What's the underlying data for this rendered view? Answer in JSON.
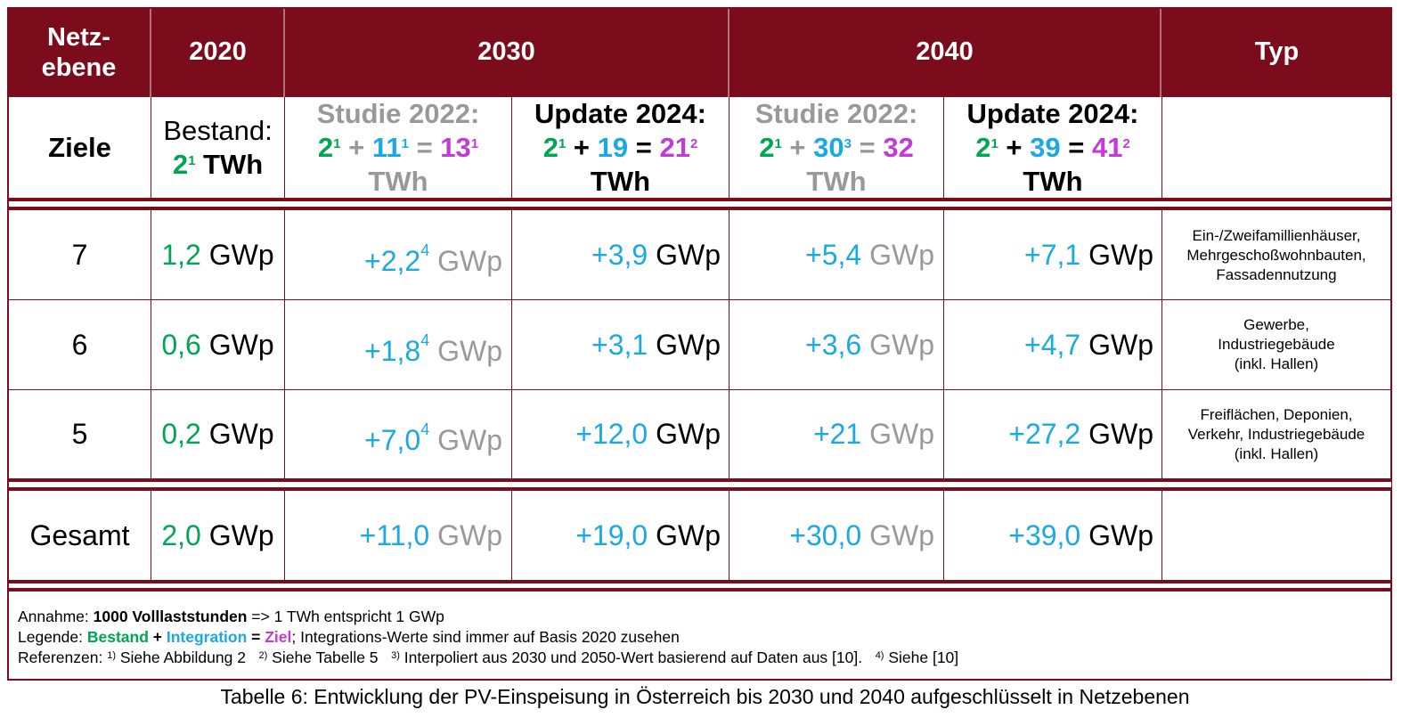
{
  "header": {
    "col_netz": "Netz-\nebene",
    "col_2020": "2020",
    "col_2030": "2030",
    "col_2040": "2040",
    "col_typ": "Typ"
  },
  "goals": {
    "label": "Ziele",
    "y2020": {
      "title": "Bestand:",
      "v1": "2",
      "s1": "1",
      "unit": "TWh"
    },
    "s2030": {
      "title": "Studie 2022:",
      "a": "2",
      "as": "1",
      "plus": "+",
      "b": "11",
      "bs": "1",
      "eq": "=",
      "c": "13",
      "cs": "1",
      "unit": "TWh"
    },
    "u2030": {
      "title": "Update 2024:",
      "a": "2",
      "as": "1",
      "plus": "+",
      "b": "19",
      "eq": "=",
      "c": "21",
      "cs": "2",
      "unit": "TWh"
    },
    "s2040": {
      "title": "Studie 2022:",
      "a": "2",
      "as": "1",
      "plus": "+",
      "b": "30",
      "bs": "3",
      "eq": "=",
      "c": "32",
      "unit": "TWh"
    },
    "u2040": {
      "title": "Update 2024:",
      "a": "2",
      "as": "1",
      "plus": "+",
      "b": "39",
      "eq": "=",
      "c": "41",
      "cs": "2",
      "unit": "TWh"
    }
  },
  "rows": [
    {
      "level": "7",
      "bestand": "1,2",
      "s2030": "+2,2",
      "s2030_sup": "4",
      "u2030": "+3,9",
      "s2040": "+5,4",
      "u2040": "+7,1",
      "typ": [
        "Ein-/Zweifamillienhäuser,",
        "Mehrgeschoßwohnbauten,",
        "Fassadennutzung"
      ]
    },
    {
      "level": "6",
      "bestand": "0,6",
      "s2030": "+1,8",
      "s2030_sup": "4",
      "u2030": "+3,1",
      "s2040": "+3,6",
      "u2040": "+4,7",
      "typ": [
        "Gewerbe,",
        "Industriegebäude",
        "(inkl. Hallen)"
      ]
    },
    {
      "level": "5",
      "bestand": "0,2",
      "s2030": "+7,0",
      "s2030_sup": "4",
      "u2030": "+12,0",
      "s2040": "+21",
      "u2040": "+27,2",
      "typ": [
        "Freiflächen, Deponien,",
        "Verkehr, Industriegebäude",
        "(inkl. Hallen)"
      ]
    }
  ],
  "total": {
    "label": "Gesamt",
    "bestand": "2,0",
    "s2030": "+11,0",
    "u2030": "+19,0",
    "s2040": "+30,0",
    "u2040": "+39,0"
  },
  "unit": "GWp",
  "notes": {
    "l1_a": "Annahme: ",
    "l1_b": "1000 Volllaststunden",
    "l1_c": " => 1 TWh entspricht 1 GWp",
    "l2_a": "Legende: ",
    "l2_b": "Bestand",
    "l2_plus": " + ",
    "l2_c": "Integration",
    "l2_eq": " = ",
    "l2_d": "Ziel",
    "l2_e": "; Integrations-Werte sind immer auf Basis 2020 zusehen",
    "l3_a": "Referenzen: ",
    "r1s": "1)",
    "r1": " Siehe Abbildung 2   ",
    "r2s": "2)",
    "r2": " Siehe Tabelle 5   ",
    "r3s": "3)",
    "r3": " Interpoliert aus 2030 und 2050-Wert basierend auf Daten aus [10].   ",
    "r4s": "4)",
    "r4": " Siehe [10]"
  },
  "caption": "Tabelle 6: Entwicklung der PV-Einspeisung in Österreich bis 2030 und 2040 aufgeschlüsselt in Netzebenen",
  "colors": {
    "frame": "#7a0c1c",
    "green": "#00a651",
    "blue": "#1aa9e1",
    "purple": "#c13bd6",
    "gray": "#999999"
  }
}
